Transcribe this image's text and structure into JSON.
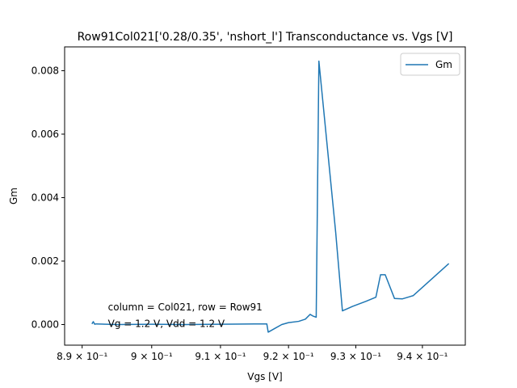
{
  "chart_data": {
    "type": "line",
    "title": "Row91Col021['0.28/0.35', 'nshort_l'] Transconductance vs. Vgs [V]",
    "xlabel": "Vgs [V]",
    "ylabel": "Gm",
    "xscale": "log",
    "xlim": [
      0.8875,
      0.9465
    ],
    "ylim": [
      -0.00065,
      0.00875
    ],
    "grid": false,
    "legend_position": "top-right",
    "x_ticks": [
      {
        "value": 0.89,
        "label": "8.9 × 10⁻¹"
      },
      {
        "value": 0.9,
        "label": "9 × 10⁻¹"
      },
      {
        "value": 0.91,
        "label": "9.1 × 10⁻¹"
      },
      {
        "value": 0.92,
        "label": "9.2 × 10⁻¹"
      },
      {
        "value": 0.93,
        "label": "9.3 × 10⁻¹"
      },
      {
        "value": 0.94,
        "label": "9.4 × 10⁻¹"
      }
    ],
    "y_ticks": [
      {
        "value": 0.0,
        "label": "0.000"
      },
      {
        "value": 0.002,
        "label": "0.002"
      },
      {
        "value": 0.004,
        "label": "0.004"
      },
      {
        "value": 0.006,
        "label": "0.006"
      },
      {
        "value": 0.008,
        "label": "0.008"
      }
    ],
    "series": [
      {
        "name": "Gm",
        "color": "#1f77b4",
        "points": [
          [
            0.8914,
            2e-05
          ],
          [
            0.8916,
            9e-05
          ],
          [
            0.8918,
            1e-05
          ],
          [
            0.892,
            2e-05
          ],
          [
            0.895,
            0.0
          ],
          [
            0.9,
            1e-05
          ],
          [
            0.905,
            0.0
          ],
          [
            0.91,
            1e-05
          ],
          [
            0.915,
            2e-05
          ],
          [
            0.9168,
            2e-05
          ],
          [
            0.917,
            -0.00024
          ],
          [
            0.918,
            -0.00012
          ],
          [
            0.919,
            0.0
          ],
          [
            0.92,
            6e-05
          ],
          [
            0.9215,
            0.0001
          ],
          [
            0.9225,
            0.00017
          ],
          [
            0.9232,
            0.00032
          ],
          [
            0.9236,
            0.00027
          ],
          [
            0.9241,
            0.00023
          ],
          [
            0.9245,
            0.0083
          ],
          [
            0.927,
            0.0029
          ],
          [
            0.928,
            0.00043
          ],
          [
            0.9295,
            0.00057
          ],
          [
            0.9315,
            0.00073
          ],
          [
            0.933,
            0.00086
          ],
          [
            0.9337,
            0.00157
          ],
          [
            0.9344,
            0.00157
          ],
          [
            0.9358,
            0.00082
          ],
          [
            0.937,
            0.00081
          ],
          [
            0.9386,
            0.00091
          ],
          [
            0.944,
            0.00192
          ]
        ]
      }
    ],
    "annotations": [
      {
        "text": "column = Col021, row = Row91",
        "x": 0.8937,
        "y": 0.00045
      },
      {
        "text": "Vg = 1.2 V, Vdd = 1.2 V",
        "x": 0.8937,
        "y": -8e-05
      }
    ]
  }
}
